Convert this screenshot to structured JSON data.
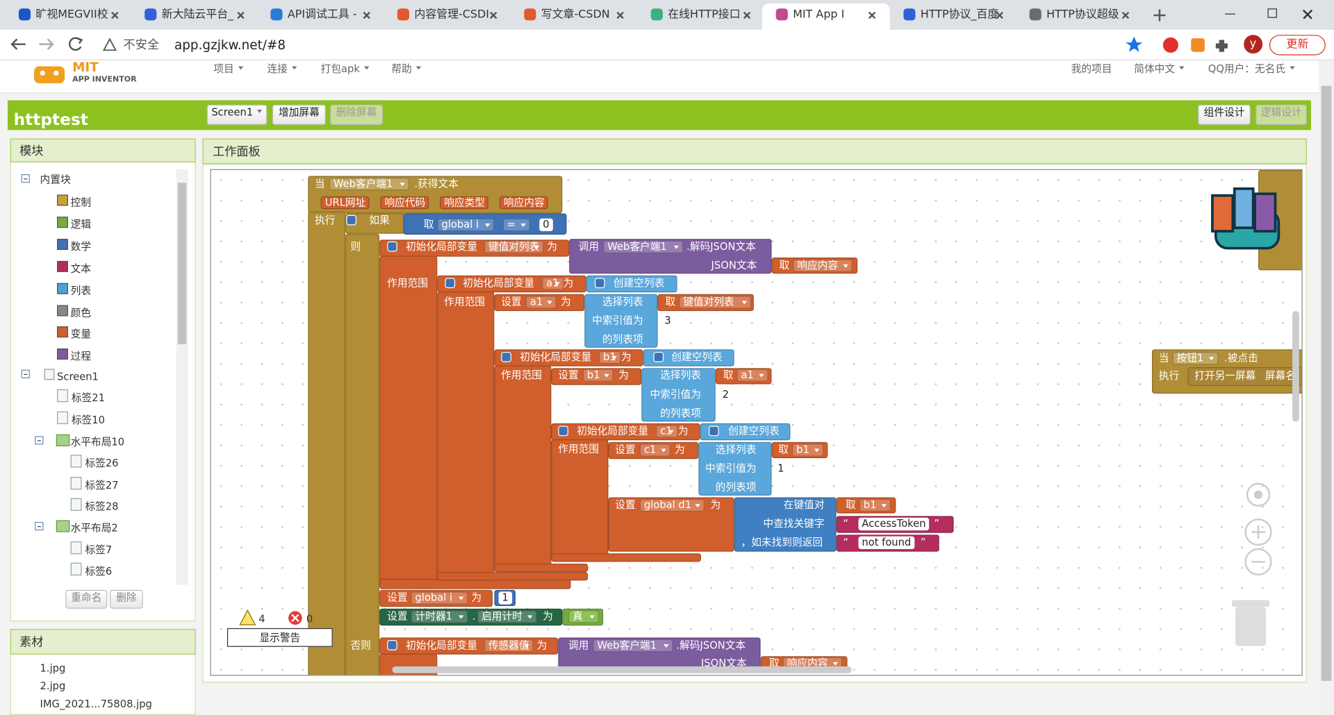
{
  "browser": {
    "tabs": [
      "旷视MEGVII校",
      "新大陆云平台_",
      "API调试工具 -",
      "内容管理-CSDI",
      "写文章-CSDN",
      "在线HTTP接口",
      "MIT App I",
      "HTTP协议_百度",
      "HTTP协议超级"
    ],
    "security": "不安全",
    "url": "app.gzjkw.net/#8",
    "profile": "y",
    "update": "更新"
  },
  "header": {
    "logo": "MIT",
    "logo_sub": "APP INVENTOR",
    "menu": [
      "项目",
      "连接",
      "打包apk",
      "帮助"
    ],
    "my_projects": "我的项目",
    "language": "简体中文",
    "user": "QQ用户：无名氏"
  },
  "toolbar": {
    "project": "httptest",
    "screen": "Screen1",
    "add_screen": "增加屏幕",
    "remove_screen": "删除屏幕",
    "designer": "组件设计",
    "blocks_editor": "逻辑设计"
  },
  "blocks_panel": {
    "title": "模块",
    "builtin": "内置块",
    "builtin_items": [
      "控制",
      "逻辑",
      "数学",
      "文本",
      "列表",
      "颜色",
      "变量",
      "过程"
    ],
    "screen": "Screen1",
    "components": [
      "标签21",
      "标签10",
      "水平布局10",
      "标签26",
      "标签27",
      "标签28",
      "水平布局2",
      "标签7",
      "标签6"
    ],
    "rename": "重命名",
    "delete": "删除"
  },
  "media": {
    "title": "素材",
    "files": [
      "1.jpg",
      "2.jpg",
      "IMG_2021...75808.jpg"
    ]
  },
  "workspace": {
    "title": "工作面板",
    "warnings": 4,
    "errors": 0,
    "show_warnings": "显示警告",
    "block_texts": [
      "当",
      "Web客户端1",
      ".获得文本",
      "URL网址",
      "响应代码",
      "响应类型",
      "响应内容",
      "执行",
      "如果",
      "取",
      "global i",
      "=",
      0,
      "则",
      "初始化局部变量",
      "键值对列表",
      "为",
      "调用",
      "Web客户端1",
      ".解码JSON文本",
      "JSON文本",
      "取",
      "响应内容",
      "作用范围",
      "初始化局部变量",
      "a1",
      "为",
      "创建空列表",
      "作用范围",
      "设置",
      "a1",
      "为",
      "选择列表",
      "取",
      "键值对列表",
      "中索引值为",
      3,
      "的列表项",
      "初始化局部变量",
      "b1",
      "为",
      "创建空列表",
      "作用范围",
      "设置",
      "b1",
      "为",
      "选择列表",
      "取",
      "a1",
      "中索引值为",
      2,
      "的列表项",
      "初始化局部变量",
      "c1",
      "为",
      "创建空列表",
      "作用范围",
      "设置",
      "c1",
      "为",
      "选择列表",
      "取",
      "b1",
      "中索引值为",
      1,
      "的列表项",
      "设置",
      "global d1",
      "为",
      "在键值对",
      "取",
      "b1",
      "中查找关键字",
      "AccessToken",
      "，如未找到则返回",
      "not found",
      "设置",
      "global i",
      "为",
      1,
      "设置",
      "计时器1",
      ".",
      "启用计时",
      "为",
      "真",
      "否则",
      "初始化局部变量",
      "传感器值",
      "为",
      "调用",
      "Web客户端1",
      ".解码JSON文本",
      "JSON文本",
      "取",
      "响应内容",
      "当",
      "按钮1",
      ".被点击",
      "执行",
      "打开另一屏幕",
      "屏幕名",
      "“",
      "”",
      "“",
      "”"
    ]
  }
}
